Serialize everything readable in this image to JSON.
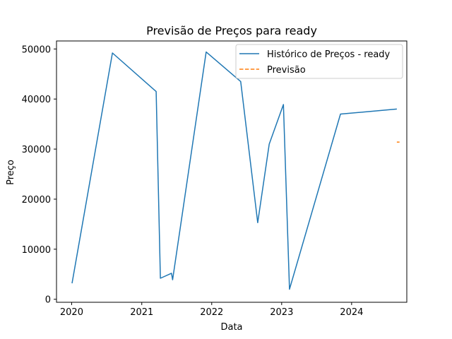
{
  "chart_data": {
    "type": "line",
    "title": "Previsão de Preços para ready",
    "xlabel": "Data",
    "ylabel": "Preço",
    "x_axis": {
      "type": "date",
      "range": [
        "2019-10-14",
        "2024-10-15"
      ],
      "ticks": [
        {
          "value": "2020-01-01",
          "label": "2020"
        },
        {
          "value": "2021-01-01",
          "label": "2021"
        },
        {
          "value": "2022-01-01",
          "label": "2022"
        },
        {
          "value": "2023-01-01",
          "label": "2023"
        },
        {
          "value": "2024-01-01",
          "label": "2024"
        }
      ]
    },
    "y_axis": {
      "range": [
        -600,
        51600
      ],
      "ticks": [
        {
          "value": 0,
          "label": "0"
        },
        {
          "value": 10000,
          "label": "10000"
        },
        {
          "value": 20000,
          "label": "20000"
        },
        {
          "value": 30000,
          "label": "30000"
        },
        {
          "value": 40000,
          "label": "40000"
        },
        {
          "value": 50000,
          "label": "50000"
        }
      ]
    },
    "grid": false,
    "legend_position": "upper right",
    "series": [
      {
        "name": "Histórico de Preços - ready",
        "color": "#1f77b4",
        "style": "solid",
        "x": [
          "2020-01-03",
          "2020-08-01",
          "2021-03-17",
          "2021-04-08",
          "2021-06-05",
          "2021-06-11",
          "2021-12-03",
          "2022-06-01",
          "2022-08-29",
          "2022-10-28",
          "2023-01-10",
          "2023-02-11",
          "2023-11-04",
          "2024-08-24"
        ],
        "y": [
          3200,
          49200,
          41500,
          4200,
          5200,
          3900,
          49400,
          43500,
          15300,
          31000,
          38900,
          2000,
          37000,
          38000
        ]
      },
      {
        "name": "Previsão",
        "color": "#ff7f0e",
        "style": "dashed",
        "x": [
          "2024-08-24",
          "2024-09-07"
        ],
        "y": [
          31400,
          31400
        ]
      }
    ]
  }
}
